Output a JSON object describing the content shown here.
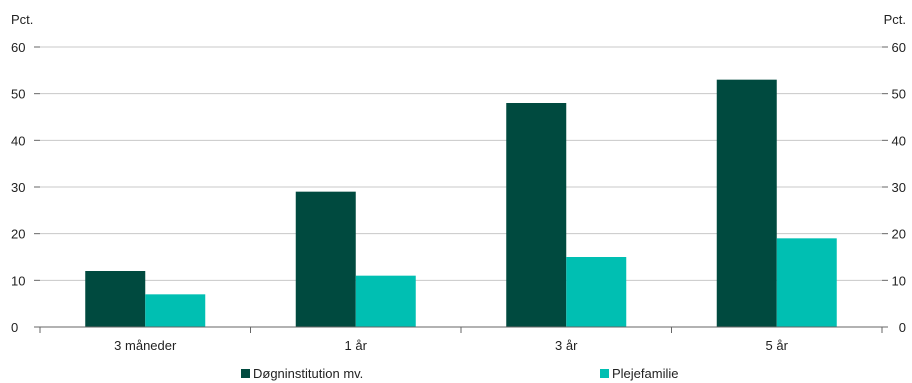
{
  "chart_data": {
    "type": "bar",
    "title": "",
    "unit_left": "Pct.",
    "unit_right": "Pct.",
    "categories": [
      "3 måneder",
      "1 år",
      "3 år",
      "5 år"
    ],
    "series": [
      {
        "name": "Døgninstitution mv.",
        "color": "#004a3f",
        "values": [
          12,
          29,
          48,
          53
        ]
      },
      {
        "name": "Plejefamilie",
        "color": "#00bfb2",
        "values": [
          7,
          11,
          15,
          19
        ]
      }
    ],
    "ylim": [
      0,
      60
    ],
    "yticks": [
      0,
      10,
      20,
      30,
      40,
      50,
      60
    ],
    "grid": true,
    "legend_position": "bottom"
  }
}
